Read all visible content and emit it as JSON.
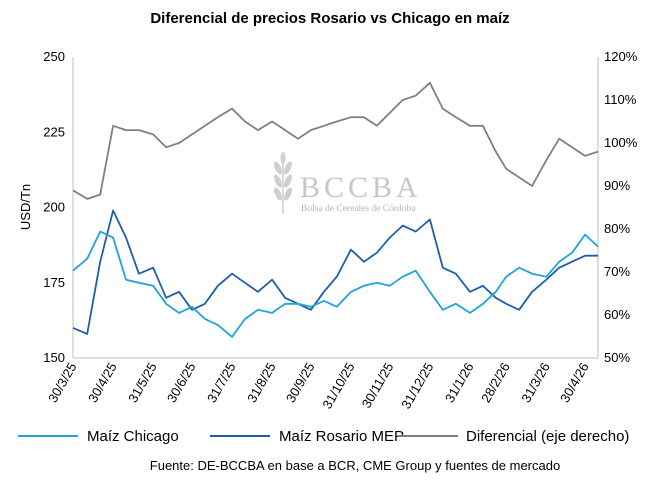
{
  "chart_data": {
    "type": "line",
    "title": "Diferencial de precios Rosario vs Chicago en maíz",
    "ylabel": "USD/Tn",
    "ylim": [
      150,
      250
    ],
    "yticks": [
      150,
      175,
      200,
      225,
      250
    ],
    "y2lim": [
      50,
      120
    ],
    "y2ticks": [
      "50%",
      "60%",
      "70%",
      "80%",
      "90%",
      "100%",
      "110%",
      "120%"
    ],
    "x_tick_labels": [
      "30/3/25",
      "30/4/25",
      "31/5/25",
      "30/6/25",
      "31/7/25",
      "31/8/25",
      "30/9/25",
      "31/10/25",
      "30/11/25",
      "31/12/25",
      "31/1/26",
      "28/2/26",
      "31/3/26",
      "30/4/26"
    ],
    "grid": false,
    "legend_position": "bottom",
    "series": [
      {
        "name": "Maíz Chicago",
        "color": "#1ea3dd",
        "axis": "left",
        "x": [
          "30/3/25",
          "10/4/25",
          "20/4/25",
          "30/4/25",
          "10/5/25",
          "20/5/25",
          "31/5/25",
          "10/6/25",
          "20/6/25",
          "30/6/25",
          "10/7/25",
          "20/7/25",
          "31/7/25",
          "10/8/25",
          "20/8/25",
          "31/8/25",
          "10/9/25",
          "20/9/25",
          "30/9/25",
          "10/10/25",
          "20/10/25",
          "31/10/25",
          "10/11/25",
          "20/11/25",
          "30/11/25",
          "10/12/25",
          "20/12/25",
          "31/12/25",
          "10/1/26",
          "20/1/26",
          "31/1/26",
          "10/2/26",
          "20/2/26",
          "28/2/26",
          "10/3/26",
          "20/3/26",
          "31/3/26",
          "10/4/26",
          "20/4/26",
          "30/4/26",
          "10/5/26"
        ],
        "values": [
          179,
          183,
          192,
          190,
          176,
          175,
          174,
          168,
          165,
          167,
          163,
          161,
          157,
          163,
          166,
          165,
          168,
          168,
          167,
          169,
          167,
          172,
          174,
          175,
          174,
          177,
          179,
          172,
          166,
          168,
          165,
          168,
          172,
          177,
          180,
          178,
          177,
          182,
          185,
          191,
          187
        ]
      },
      {
        "name": "Maíz Rosario MEP",
        "color": "#1f5fa8",
        "axis": "left",
        "x": [
          "30/3/25",
          "10/4/25",
          "20/4/25",
          "30/4/25",
          "10/5/25",
          "20/5/25",
          "31/5/25",
          "10/6/25",
          "20/6/25",
          "30/6/25",
          "10/7/25",
          "20/7/25",
          "31/7/25",
          "10/8/25",
          "20/8/25",
          "31/8/25",
          "10/9/25",
          "20/9/25",
          "30/9/25",
          "10/10/25",
          "20/10/25",
          "31/10/25",
          "10/11/25",
          "20/11/25",
          "30/11/25",
          "10/12/25",
          "20/12/25",
          "31/12/25",
          "10/1/26",
          "20/1/26",
          "31/1/26",
          "10/2/26",
          "20/2/26",
          "28/2/26",
          "10/3/26",
          "20/3/26",
          "31/3/26",
          "10/4/26",
          "20/4/26",
          "30/4/26",
          "10/5/26"
        ],
        "values": [
          160,
          158,
          182,
          199,
          190,
          178,
          180,
          170,
          172,
          166,
          168,
          174,
          178,
          175,
          172,
          176,
          170,
          168,
          166,
          172,
          177,
          186,
          182,
          185,
          190,
          194,
          192,
          196,
          180,
          178,
          172,
          174,
          170,
          168,
          166,
          172,
          176,
          180,
          182,
          184,
          184
        ]
      },
      {
        "name": "Diferencial (eje derecho)",
        "color": "#808080",
        "axis": "right",
        "x": [
          "30/3/25",
          "10/4/25",
          "20/4/25",
          "30/4/25",
          "10/5/25",
          "20/5/25",
          "31/5/25",
          "10/6/25",
          "20/6/25",
          "30/6/25",
          "10/7/25",
          "20/7/25",
          "31/7/25",
          "10/8/25",
          "20/8/25",
          "31/8/25",
          "10/9/25",
          "20/9/25",
          "30/9/25",
          "10/10/25",
          "20/10/25",
          "31/10/25",
          "10/11/25",
          "20/11/25",
          "30/11/25",
          "10/12/25",
          "20/12/25",
          "31/12/25",
          "10/1/26",
          "20/1/26",
          "31/1/26",
          "10/2/26",
          "20/2/26",
          "28/2/26",
          "10/3/26",
          "20/3/26",
          "31/3/26",
          "10/4/26",
          "20/4/26",
          "30/4/26",
          "10/5/26"
        ],
        "values": [
          89,
          87,
          88,
          104,
          103,
          103,
          102,
          99,
          100,
          102,
          104,
          106,
          108,
          105,
          103,
          105,
          103,
          101,
          103,
          104,
          105,
          106,
          106,
          104,
          107,
          110,
          111,
          114,
          108,
          106,
          104,
          104,
          98,
          94,
          92,
          90,
          96,
          101,
          99,
          97,
          98
        ]
      }
    ]
  },
  "watermark": {
    "name": "BCCBA",
    "subtitle": "Bolsa de Cereales de Córdoba"
  },
  "source": "Fuente: DE-BCCBA en base a BCR, CME Group y fuentes de mercado"
}
